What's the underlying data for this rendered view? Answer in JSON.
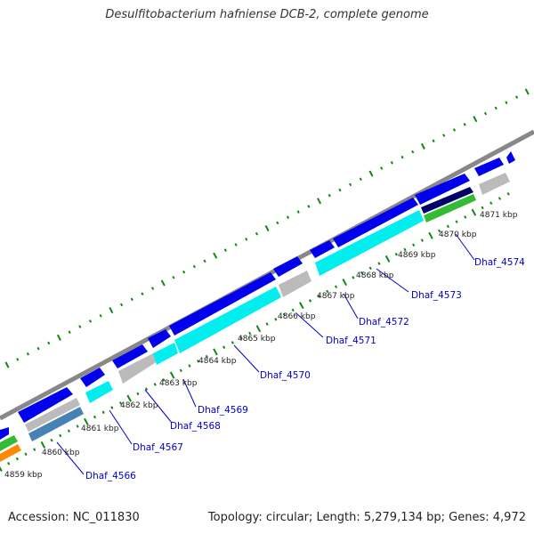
{
  "title": "Desulfitobacterium hafniense DCB-2, complete genome",
  "footer": {
    "accession": "Accession: NC_011830",
    "summary": "Topology: circular; Length: 5,279,134 bp; Genes: 4,972"
  },
  "colors": {
    "backbone": "#888888",
    "cds": "#0000ee",
    "highlight": "#00eeee",
    "gray_feature": "#bbbbbb",
    "green_feature": "#33bb33",
    "navy_feature": "#000066",
    "steel_feature": "#4682b4",
    "orange_feature": "#ff8800",
    "ticks": "#118811",
    "label": "#0000cc"
  },
  "kbp_labels": [
    "4859 kbp",
    "4860 kbp",
    "4861 kbp",
    "4862 kbp",
    "4863 kbp",
    "4864 kbp",
    "4865 kbp",
    "4866 kbp",
    "4867 kbp",
    "4868 kbp",
    "4869 kbp",
    "4870 kbp",
    "4871 kbp"
  ],
  "gene_labels": [
    "Dhaf_4566",
    "Dhaf_4567",
    "Dhaf_4568",
    "Dhaf_4569",
    "Dhaf_4570",
    "Dhaf_4571",
    "Dhaf_4572",
    "Dhaf_4573",
    "Dhaf_4574"
  ]
}
